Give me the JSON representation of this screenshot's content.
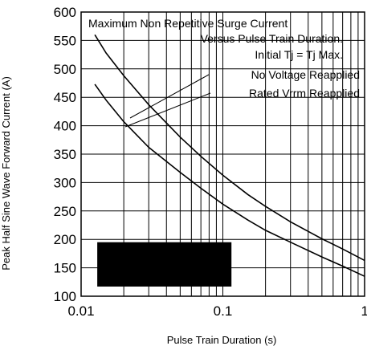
{
  "chart_data": {
    "type": "line",
    "xlabel": "Pulse Train  Duration (s)",
    "ylabel": "Peak Half Sine Wave Forward Current (A)",
    "x_scale": "log",
    "xlim": [
      0.01,
      1
    ],
    "ylim": [
      100,
      600
    ],
    "x_tick_labels": [
      "0.01",
      "0.1",
      "1"
    ],
    "y_ticks": [
      100,
      150,
      200,
      250,
      300,
      350,
      400,
      450,
      500,
      550,
      600
    ],
    "grid": true,
    "annotations": [
      "Maximum Non Repetitive Surge Current",
      "Versus Pulse Train Duration.",
      "Initial Tj = Tj Max.",
      "No Voltage Reapplied",
      "Rated Vrrm Reapplied"
    ],
    "series": [
      {
        "name": "No Voltage Reapplied",
        "x": [
          0.0125,
          0.015,
          0.02,
          0.03,
          0.05,
          0.07,
          0.1,
          0.15,
          0.2,
          0.3,
          0.5,
          0.7,
          1.0
        ],
        "y": [
          560,
          528,
          488,
          437,
          380,
          346,
          313,
          279,
          258,
          231,
          201,
          183,
          163
        ]
      },
      {
        "name": "Rated Vrrm Reapplied",
        "x": [
          0.0125,
          0.015,
          0.02,
          0.03,
          0.05,
          0.07,
          0.1,
          0.15,
          0.2,
          0.3,
          0.5,
          0.7,
          1.0
        ],
        "y": [
          473,
          445,
          407,
          362,
          318,
          290,
          262,
          234,
          216,
          195,
          169,
          153,
          135
        ]
      }
    ],
    "redacted_box": {
      "x": [
        0.013,
        0.115
      ],
      "y": [
        117,
        195
      ]
    }
  }
}
